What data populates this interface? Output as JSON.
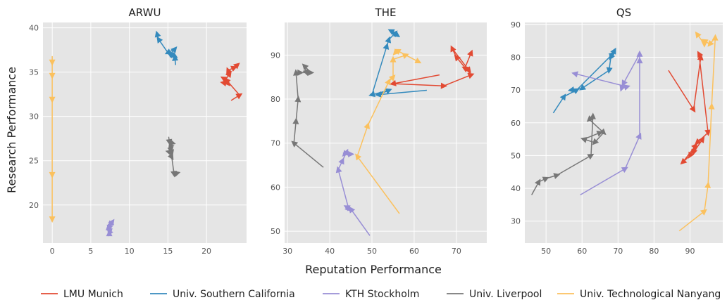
{
  "xlabel": "Reputation Performance",
  "ylabel": "Research Performance",
  "legend": {
    "placement": "bottom",
    "entries": [
      {
        "name": "LMU Munich",
        "color": "#e24a33"
      },
      {
        "name": "Univ. Southern California",
        "color": "#348abd"
      },
      {
        "name": "KTH Stockholm",
        "color": "#988ed5"
      },
      {
        "name": "Univ. Liverpool",
        "color": "#777777"
      },
      {
        "name": "Univ. Technological Nanyang",
        "color": "#fbc15e"
      }
    ]
  },
  "chart_data": [
    {
      "type": "line",
      "title": "ARWU",
      "background": "#e5e5e5",
      "grid": true,
      "xlim": [
        -1.2,
        25.2
      ],
      "ylim": [
        15.7,
        40.6
      ],
      "xticks": [
        0,
        5,
        10,
        15,
        20
      ],
      "yticks": [
        20,
        25,
        30,
        35,
        40
      ],
      "series": [
        {
          "name": "LMU Munich",
          "color": "#e24a33",
          "x": [
            23.2,
            24.3,
            22.6,
            22.2,
            22.8,
            22.2,
            23.0,
            22.8,
            23.6,
            24.0
          ],
          "y": [
            31.8,
            32.4,
            34.1,
            34.3,
            33.7,
            33.8,
            34.8,
            35.2,
            35.5,
            35.8
          ]
        },
        {
          "name": "Univ. Southern California",
          "color": "#348abd",
          "x": [
            16.0,
            15.9,
            15.3,
            15.9,
            15.3,
            15.9,
            15.0,
            13.8,
            13.6
          ],
          "y": [
            35.8,
            36.6,
            37.1,
            36.8,
            37.0,
            37.6,
            37.2,
            38.7,
            39.3
          ]
        },
        {
          "name": "KTH Stockholm",
          "color": "#988ed5",
          "x": [
            7.4,
            7.4,
            7.3,
            7.8,
            7.5,
            7.4,
            7.5,
            7.4
          ],
          "y": [
            16.6,
            16.8,
            17.5,
            18.1,
            17.8,
            17.4,
            17.0,
            16.8
          ],
          "markers_from": 1
        },
        {
          "name": "Univ. Liverpool",
          "color": "#777777",
          "x": [
            15.1,
            15.2,
            15.6,
            15.3,
            15.4,
            15.5,
            15.1,
            15.5,
            15.8,
            16.2
          ],
          "y": [
            27.7,
            27.1,
            27.0,
            26.6,
            26.2,
            25.9,
            26.0,
            25.4,
            23.5,
            23.6
          ]
        },
        {
          "name": "Univ. Technological Nanyang",
          "color": "#fbc15e",
          "x": [
            0.0,
            0.0,
            0.0,
            0.0,
            0.0,
            0.0
          ],
          "y": [
            36.8,
            36.1,
            34.6,
            31.9,
            23.4,
            18.4
          ]
        }
      ]
    },
    {
      "type": "line",
      "title": "THE",
      "background": "#e5e5e5",
      "grid": true,
      "xlim": [
        29.3,
        77.2
      ],
      "ylim": [
        47.3,
        97.4
      ],
      "xticks": [
        30,
        40,
        50,
        60,
        70
      ],
      "yticks": [
        50,
        60,
        70,
        80,
        90
      ],
      "series": [
        {
          "name": "LMU Munich",
          "color": "#e24a33",
          "x": [
            66.0,
            55.0,
            67.0,
            73.5,
            70.0,
            69.0,
            73.0,
            72.0,
            73.5
          ],
          "y": [
            85.5,
            83.5,
            83.0,
            85.5,
            89.5,
            91.5,
            86.5,
            87.0,
            90.5
          ]
        },
        {
          "name": "Univ. Southern California",
          "color": "#348abd",
          "x": [
            63.0,
            51.5,
            54.0,
            50.0,
            53.5,
            54.0,
            55.5,
            54.5,
            56.0
          ],
          "y": [
            82.0,
            81.0,
            82.0,
            81.0,
            92.0,
            93.5,
            95.0,
            95.5,
            94.5
          ]
        },
        {
          "name": "KTH Stockholm",
          "color": "#988ed5",
          "x": [
            49.5,
            45.0,
            44.0,
            44.5,
            42.0,
            43.0,
            44.0,
            43.5,
            45.0
          ],
          "y": [
            49.0,
            55.0,
            55.5,
            55.0,
            64.0,
            66.0,
            68.0,
            67.5,
            67.5
          ]
        },
        {
          "name": "Univ. Liverpool",
          "color": "#777777",
          "x": [
            38.5,
            31.5,
            32.0,
            32.5,
            32.0,
            33.0,
            35.5,
            34.0,
            34.5
          ],
          "y": [
            64.5,
            70.0,
            75.0,
            80.0,
            86.0,
            86.0,
            86.0,
            87.5,
            86.0
          ]
        },
        {
          "name": "Univ. Technological Nanyang",
          "color": "#fbc15e",
          "x": [
            56.5,
            46.5,
            49.0,
            54.0,
            55.0,
            55.0,
            58.0,
            61.0,
            56.0,
            55.5
          ],
          "y": [
            54.0,
            67.0,
            74.0,
            84.0,
            85.0,
            89.0,
            90.0,
            88.5,
            91.0,
            90.5
          ]
        }
      ]
    },
    {
      "type": "line",
      "title": "QS",
      "background": "#e5e5e5",
      "grid": true,
      "xlim": [
        44.1,
        99.1
      ],
      "ylim": [
        23.3,
        90.6
      ],
      "xticks": [
        50,
        60,
        70,
        80,
        90
      ],
      "yticks": [
        30,
        40,
        50,
        60,
        70,
        80,
        90
      ],
      "series": [
        {
          "name": "LMU Munich",
          "color": "#e24a33",
          "x": [
            84.0,
            91.0,
            93.0,
            92.5,
            95.0,
            92.0,
            90.0,
            88.0,
            91.5,
            91.0,
            93.5
          ],
          "y": [
            76.0,
            64.0,
            80.0,
            81.0,
            57.0,
            54.0,
            50.0,
            48.0,
            53.0,
            51.0,
            55.0
          ]
        },
        {
          "name": "Univ. Southern California",
          "color": "#348abd",
          "x": [
            52.0,
            55.0,
            58.5,
            68.5,
            69.0,
            68.0,
            67.5,
            60.0,
            57.0
          ],
          "y": [
            63.0,
            68.0,
            70.0,
            81.0,
            82.0,
            80.0,
            76.0,
            70.5,
            70.0
          ]
        },
        {
          "name": "KTH Stockholm",
          "color": "#988ed5",
          "x": [
            59.5,
            72.0,
            76.0,
            76.0,
            76.0,
            71.5,
            71.0,
            72.5,
            58.0
          ],
          "y": [
            38.0,
            46.0,
            56.0,
            79.0,
            81.0,
            72.0,
            70.5,
            71.0,
            75.0
          ]
        },
        {
          "name": "Univ. Liverpool",
          "color": "#777777",
          "x": [
            46.0,
            48.0,
            50.0,
            53.0,
            62.5,
            63.0,
            62.0,
            66.0,
            63.5,
            60.5,
            65.0
          ],
          "y": [
            38.0,
            42.0,
            43.0,
            44.0,
            50.0,
            62.0,
            61.0,
            57.0,
            54.0,
            55.0,
            57.0
          ]
        },
        {
          "name": "Univ. Technological Nanyang",
          "color": "#fbc15e",
          "x": [
            87.0,
            94.0,
            95.0,
            96.0,
            97.0,
            95.5,
            94.0,
            94.0,
            92.0
          ],
          "y": [
            27.0,
            33.0,
            41.0,
            65.0,
            86.0,
            84.0,
            85.0,
            84.0,
            87.0
          ]
        }
      ]
    }
  ]
}
